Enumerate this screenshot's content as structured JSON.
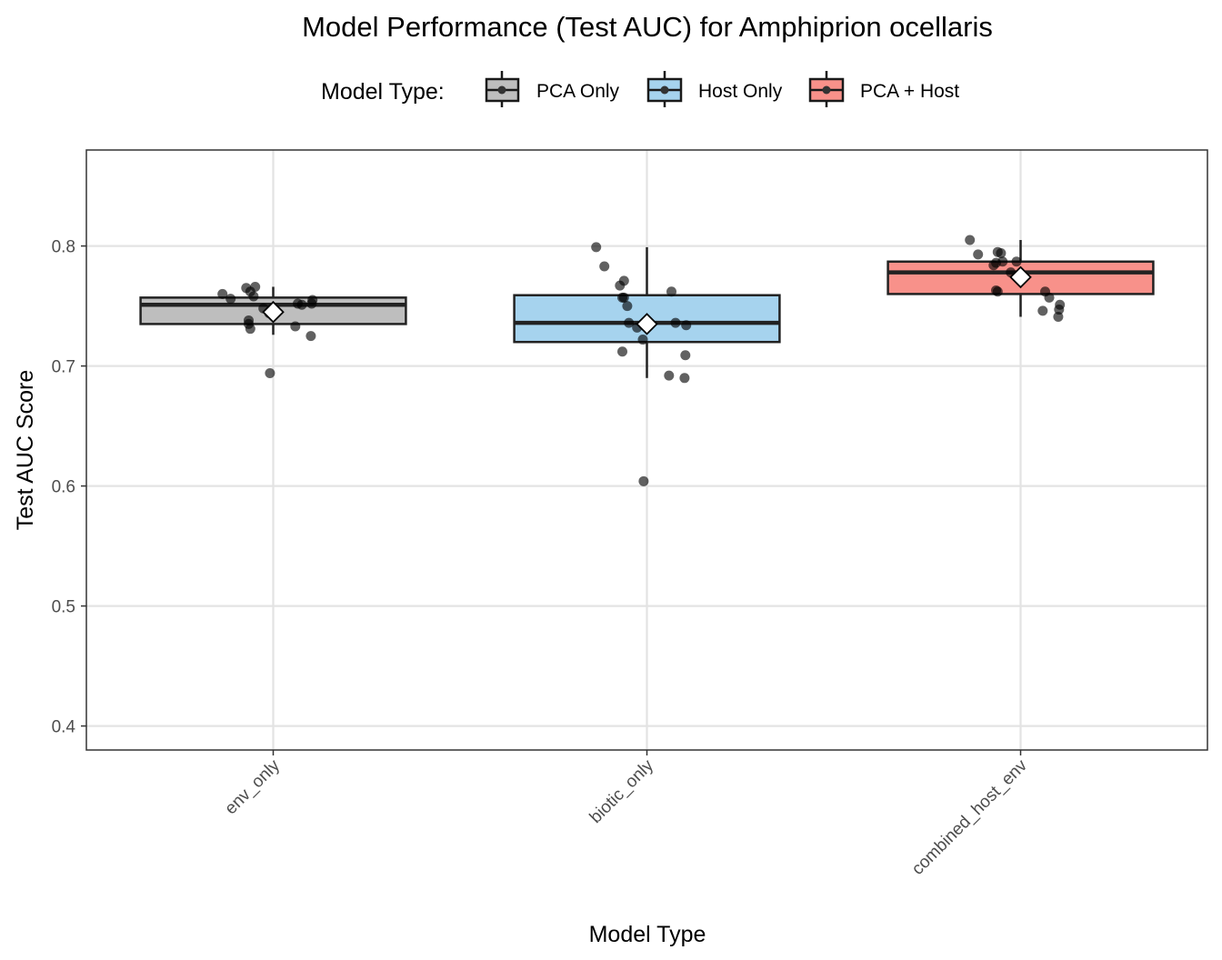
{
  "chart_data": {
    "type": "box",
    "title": "Model Performance (Test AUC) for Amphiprion ocellaris",
    "xlabel": "Model Type",
    "ylabel": "Test AUC Score",
    "ylim": [
      0.38,
      0.88
    ],
    "yticks": [
      0.4,
      0.5,
      0.6,
      0.7,
      0.8
    ],
    "ytick_labels": [
      "0.4",
      "0.5",
      "0.6",
      "0.7",
      "0.8"
    ],
    "grid": true,
    "legend": {
      "title": "Model Type:",
      "position": "top",
      "entries": [
        {
          "label": "PCA Only",
          "color": "#bebebe"
        },
        {
          "label": "Host Only",
          "color": "#a6d3ee"
        },
        {
          "label": "PCA + Host",
          "color": "#f8918a"
        }
      ]
    },
    "categories": [
      "env_only",
      "biotic_only",
      "combined_host_env"
    ],
    "series": [
      {
        "category": "env_only",
        "color": "#bebebe",
        "whisker_low": 0.726,
        "q1": 0.735,
        "median": 0.751,
        "q3": 0.757,
        "whisker_high": 0.766,
        "mean": 0.745,
        "points": [
          0.76,
          0.756,
          0.765,
          0.762,
          0.758,
          0.766,
          0.748,
          0.744,
          0.738,
          0.735,
          0.731,
          0.752,
          0.751,
          0.755,
          0.752,
          0.733,
          0.725,
          0.694
        ]
      },
      {
        "category": "biotic_only",
        "color": "#a6d3ee",
        "whisker_low": 0.69,
        "q1": 0.72,
        "median": 0.736,
        "q3": 0.759,
        "whisker_high": 0.799,
        "mean": 0.735,
        "points": [
          0.799,
          0.783,
          0.767,
          0.757,
          0.75,
          0.736,
          0.732,
          0.722,
          0.712,
          0.757,
          0.771,
          0.762,
          0.736,
          0.734,
          0.709,
          0.692,
          0.69,
          0.604
        ]
      },
      {
        "category": "combined_host_env",
        "color": "#f8918a",
        "whisker_low": 0.741,
        "q1": 0.76,
        "median": 0.778,
        "q3": 0.787,
        "whisker_high": 0.805,
        "mean": 0.774,
        "points": [
          0.805,
          0.793,
          0.784,
          0.795,
          0.794,
          0.787,
          0.778,
          0.787,
          0.786,
          0.763,
          0.762,
          0.762,
          0.757,
          0.751,
          0.747,
          0.746,
          0.741
        ]
      }
    ]
  }
}
